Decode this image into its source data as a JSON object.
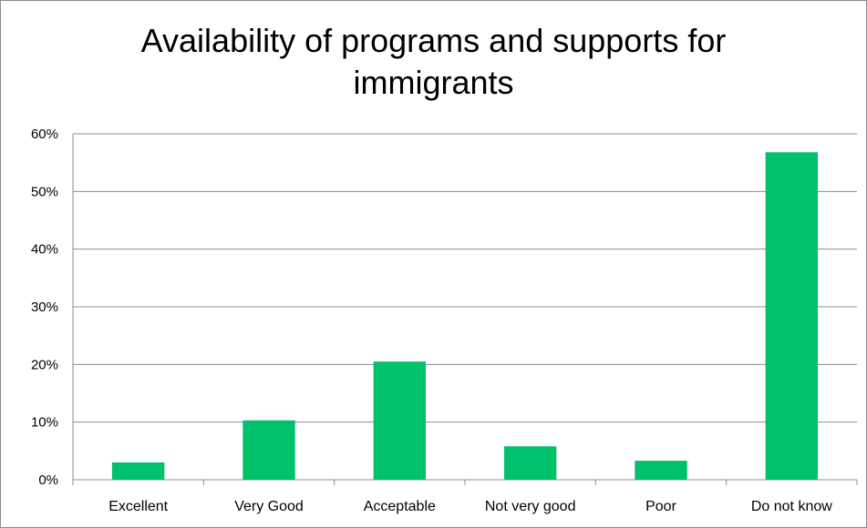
{
  "chart_data": {
    "type": "bar",
    "title_line1": "Availability of programs and supports for",
    "title_line2": "immigrants",
    "xlabel": "",
    "ylabel": "",
    "categories": [
      "Excellent",
      "Very Good",
      "Acceptable",
      "Not very good",
      "Poor",
      "Do not know"
    ],
    "values": [
      3,
      10.3,
      20.5,
      5.8,
      3.3,
      56.8
    ],
    "y_ticks": [
      "0%",
      "10%",
      "20%",
      "30%",
      "40%",
      "50%",
      "60%"
    ],
    "ylim": [
      0,
      60
    ],
    "grid": true,
    "legend": "none",
    "bar_color": "#00c06b",
    "grid_color": "#8c8c8c"
  }
}
